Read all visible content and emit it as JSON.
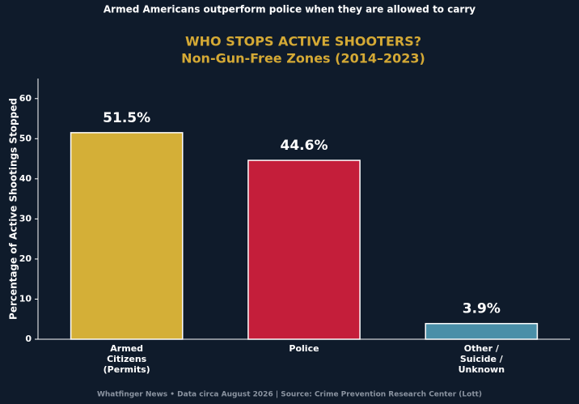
{
  "chart_data": {
    "type": "bar",
    "headline": "Armed Americans outperform police when they are allowed to carry",
    "title": "WHO STOPS ACTIVE SHOOTERS?",
    "subtitle": "Non-Gun-Free Zones (2014–2023)",
    "ylabel": "Percentage of Active Shootings Stopped",
    "categories": [
      "Armed\nCitizens\n(Permits)",
      "Police",
      "Other /\nSuicide /\nUnknown"
    ],
    "values": [
      51.5,
      44.6,
      3.9
    ],
    "value_labels": [
      "51.5%",
      "44.6%",
      "3.9%"
    ],
    "colors": [
      "#d4af37",
      "#c41e3a",
      "#4a8fa8"
    ],
    "ylim": [
      0,
      65
    ],
    "yticks": [
      0,
      10,
      20,
      30,
      40,
      50,
      60
    ],
    "grid": false,
    "footer": "Whatfinger News • Data circa August 2026 | Source: Crime Prevention Research Center (Lott)"
  }
}
